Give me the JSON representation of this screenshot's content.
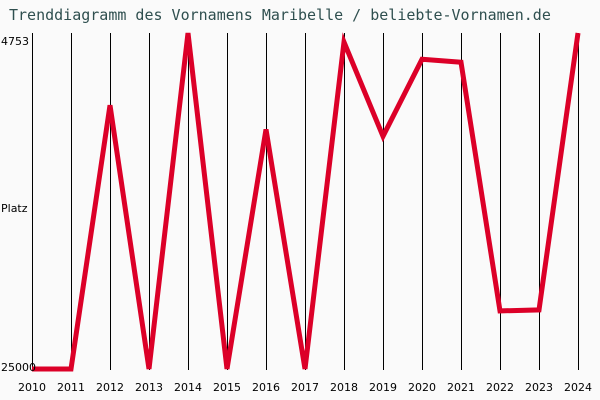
{
  "title": "Trenddiagramm des Vornamens Maribelle / beliebte-Vornamen.de",
  "y_axis": {
    "top_label": "4753",
    "middle_label": "Platz",
    "bottom_label": "25000"
  },
  "colors": {
    "line": "#dc0028",
    "title": "#2f4f4f",
    "background": "#fafafa",
    "grid": "#000000"
  },
  "chart_data": {
    "type": "line",
    "title": "Trenddiagramm des Vornamens Maribelle / beliebte-Vornamen.de",
    "xlabel": "",
    "ylabel": "Platz",
    "y_inverted": true,
    "ylim": [
      4753,
      25000
    ],
    "grid": {
      "vertical": true,
      "horizontal": false
    },
    "categories": [
      "2010",
      "2011",
      "2012",
      "2013",
      "2014",
      "2015",
      "2016",
      "2017",
      "2018",
      "2019",
      "2020",
      "2021",
      "2022",
      "2023",
      "2024"
    ],
    "series": [
      {
        "name": "Maribelle",
        "values": [
          25000,
          25000,
          9110,
          25000,
          4753,
          25000,
          10560,
          25000,
          5300,
          10980,
          6330,
          6510,
          21500,
          21440,
          4753
        ]
      }
    ]
  }
}
